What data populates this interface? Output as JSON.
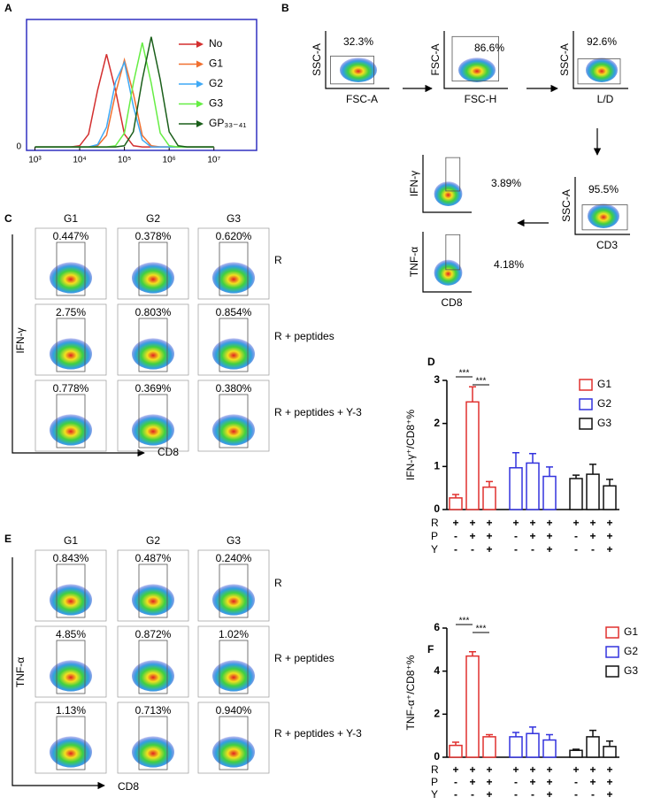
{
  "panel_labels": [
    "A",
    "B",
    "C",
    "D",
    "E",
    "F"
  ],
  "panels": {
    "B": {
      "plots": [
        {
          "y_label": "SSC-A",
          "x_label": "FSC-A",
          "percent": "32.3%"
        },
        {
          "y_label": "FSC-A",
          "x_label": "FSC-H",
          "percent": "86.6%"
        },
        {
          "y_label": "SSC-A",
          "x_label": "L/D",
          "percent": "92.6%"
        },
        {
          "y_label": "SSC-A",
          "x_label": "CD3",
          "percent": "95.5%"
        },
        {
          "y_label": "IFN-γ",
          "percent": "3.89%"
        },
        {
          "y_label": "TNF-α",
          "x_label": "CD8",
          "percent": "4.18%"
        }
      ]
    },
    "C": {
      "columns": [
        "G1",
        "G2",
        "G3"
      ],
      "rows": [
        "R",
        "R + peptides",
        "R + peptides + Y-3"
      ],
      "percents": [
        [
          "0.447%",
          "0.378%",
          "0.620%"
        ],
        [
          "2.75%",
          "0.803%",
          "0.854%"
        ],
        [
          "0.778%",
          "0.369%",
          "0.380%"
        ]
      ],
      "y_label": "IFN-γ",
      "x_label": "CD8"
    },
    "E": {
      "columns": [
        "G1",
        "G2",
        "G3"
      ],
      "rows": [
        "R",
        "R + peptides",
        "R + peptides + Y-3"
      ],
      "percents": [
        [
          "0.843%",
          "0.487%",
          "0.240%"
        ],
        [
          "4.85%",
          "0.872%",
          "1.02%"
        ],
        [
          "1.13%",
          "0.713%",
          "0.940%"
        ]
      ],
      "y_label": "TNF-α",
      "x_label": "CD8"
    }
  },
  "chart_data": [
    {
      "type": "line",
      "xscale": "log",
      "x": [
        1000,
        1585,
        2512,
        3981,
        6310,
        10000,
        15849,
        25119,
        39811,
        63096,
        100000,
        158489,
        251189,
        398107,
        630957,
        1000000,
        1584893,
        2511886,
        3981072,
        6309573,
        10000000
      ],
      "xlim": [
        650,
        90000000
      ],
      "ylim": [
        -3,
        110
      ],
      "xticks": [
        {
          "value": 1000,
          "label": "10³"
        },
        {
          "value": 10000,
          "label": "10⁴"
        },
        {
          "value": 100000,
          "label": "10⁵"
        },
        {
          "value": 1000000,
          "label": "10⁶"
        },
        {
          "value": 10000000,
          "label": "10⁷"
        }
      ],
      "yticks": [
        0
      ],
      "legend": "upper right",
      "series": [
        {
          "name": "No",
          "color": "#d32f2f",
          "values": [
            0,
            0,
            0,
            0,
            0,
            1,
            11,
            49,
            80,
            49,
            11,
            1,
            0,
            0,
            0,
            0,
            0,
            0,
            0,
            0,
            0
          ]
        },
        {
          "name": "G1",
          "color": "#f07030",
          "values": [
            0,
            0,
            0,
            0,
            0,
            0,
            0,
            1,
            10,
            46,
            75,
            46,
            10,
            1,
            0,
            0,
            0,
            0,
            0,
            0,
            0
          ]
        },
        {
          "name": "G2",
          "color": "#3fa9f5",
          "values": [
            0,
            0,
            0,
            0,
            0,
            0,
            0,
            2,
            17,
            56,
            73,
            35,
            6,
            0,
            0,
            0,
            0,
            0,
            0,
            0,
            0
          ]
        },
        {
          "name": "G3",
          "color": "#66ee44",
          "values": [
            0,
            0,
            0,
            0,
            0,
            0,
            0,
            0,
            0,
            1,
            12,
            55,
            90,
            55,
            12,
            1,
            0,
            0,
            0,
            0,
            0
          ]
        },
        {
          "name": "GP₃₃₋₄₁",
          "color": "#1a5e1a",
          "values": [
            0,
            0,
            0,
            0,
            0,
            0,
            0,
            0,
            0,
            0,
            1,
            13,
            58,
            95,
            58,
            13,
            1,
            0,
            0,
            0,
            0
          ]
        }
      ]
    },
    {
      "type": "bar",
      "y_label": "IFN-γ⁺/CD8⁺%",
      "ylim": [
        0,
        3
      ],
      "yticks": [
        0,
        1,
        2,
        3
      ],
      "legend": "upper right",
      "series": [
        {
          "name": "G1",
          "color": "#e0302e",
          "values": [
            0.27,
            2.5,
            0.52
          ],
          "errors": [
            0.08,
            0.35,
            0.13
          ]
        },
        {
          "name": "G2",
          "color": "#3333dd",
          "values": [
            0.97,
            1.08,
            0.77
          ],
          "errors": [
            0.35,
            0.22,
            0.22
          ]
        },
        {
          "name": "G3",
          "color": "#111111",
          "values": [
            0.72,
            0.82,
            0.55
          ],
          "errors": [
            0.08,
            0.23,
            0.15
          ]
        }
      ],
      "x_rows": [
        {
          "label": "R",
          "signs": [
            "+",
            "+",
            "+",
            "+",
            "+",
            "+",
            "+",
            "+",
            "+"
          ]
        },
        {
          "label": "P",
          "signs": [
            "-",
            "+",
            "+",
            "-",
            "+",
            "+",
            "-",
            "+",
            "+"
          ]
        },
        {
          "label": "Y",
          "signs": [
            "-",
            "-",
            "+",
            "-",
            "-",
            "+",
            "-",
            "-",
            "+"
          ]
        }
      ],
      "significance": [
        "***",
        "***"
      ]
    },
    {
      "type": "bar",
      "y_label": "TNF-α⁺/CD8⁺%",
      "ylim": [
        0,
        6
      ],
      "yticks": [
        0,
        2,
        4,
        6
      ],
      "legend": "upper right",
      "series": [
        {
          "name": "G1",
          "color": "#e0302e",
          "values": [
            0.55,
            4.7,
            0.95
          ],
          "errors": [
            0.15,
            0.2,
            0.1
          ]
        },
        {
          "name": "G2",
          "color": "#3333dd",
          "values": [
            0.95,
            1.1,
            0.8
          ],
          "errors": [
            0.2,
            0.3,
            0.25
          ]
        },
        {
          "name": "G3",
          "color": "#111111",
          "values": [
            0.32,
            0.95,
            0.5
          ],
          "errors": [
            0.05,
            0.3,
            0.25
          ]
        }
      ],
      "x_rows": [
        {
          "label": "R",
          "signs": [
            "+",
            "+",
            "+",
            "+",
            "+",
            "+",
            "+",
            "+",
            "+"
          ]
        },
        {
          "label": "P",
          "signs": [
            "-",
            "+",
            "+",
            "-",
            "+",
            "+",
            "-",
            "+",
            "+"
          ]
        },
        {
          "label": "Y",
          "signs": [
            "-",
            "-",
            "+",
            "-",
            "-",
            "+",
            "-",
            "-",
            "+"
          ]
        }
      ],
      "significance": [
        "***",
        "***"
      ]
    }
  ]
}
